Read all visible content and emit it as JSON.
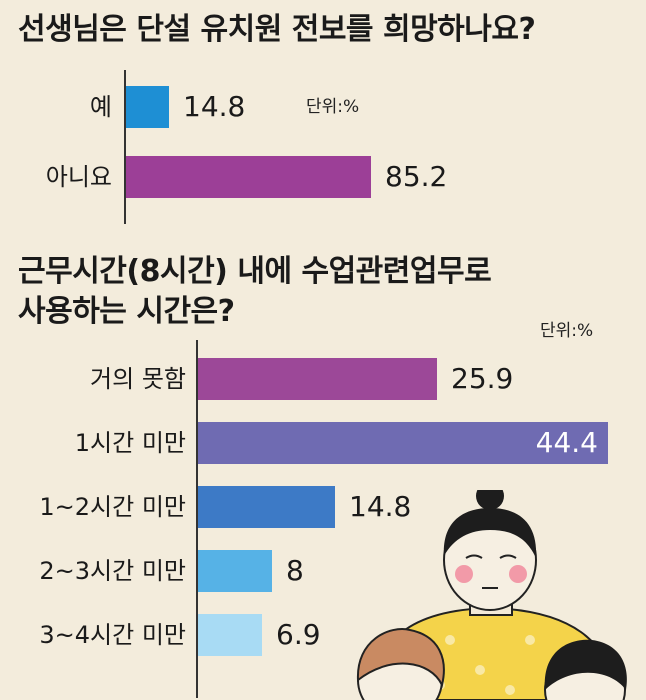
{
  "chart_data": [
    {
      "type": "bar",
      "orientation": "horizontal",
      "title": "선생님은 단설 유치원 전보를 희망하나요?",
      "unit_label": "단위:%",
      "categories": [
        "예",
        "아니요"
      ],
      "values": [
        14.8,
        85.2
      ],
      "value_labels": [
        "14.8",
        "85.2"
      ],
      "colors": [
        "#1e8fd4",
        "#9c3f97"
      ],
      "xlim": [
        0,
        100
      ]
    },
    {
      "type": "bar",
      "orientation": "horizontal",
      "title_lines": [
        "근무시간(8시간) 내에 수업관련업무로",
        "사용하는 시간은?"
      ],
      "unit_label": "단위:%",
      "categories": [
        "거의 못함",
        "1시간 미만",
        "1~2시간 미만",
        "2~3시간 미만",
        "3~4시간 미만"
      ],
      "values": [
        25.9,
        44.4,
        14.8,
        8,
        6.9
      ],
      "value_labels": [
        "25.9",
        "44.4",
        "14.8",
        "8",
        "6.9"
      ],
      "colors": [
        "#9c4898",
        "#6f6bb2",
        "#3d7ac6",
        "#56b2e6",
        "#a8dbf4"
      ],
      "xlim": [
        0,
        46.8
      ]
    }
  ]
}
